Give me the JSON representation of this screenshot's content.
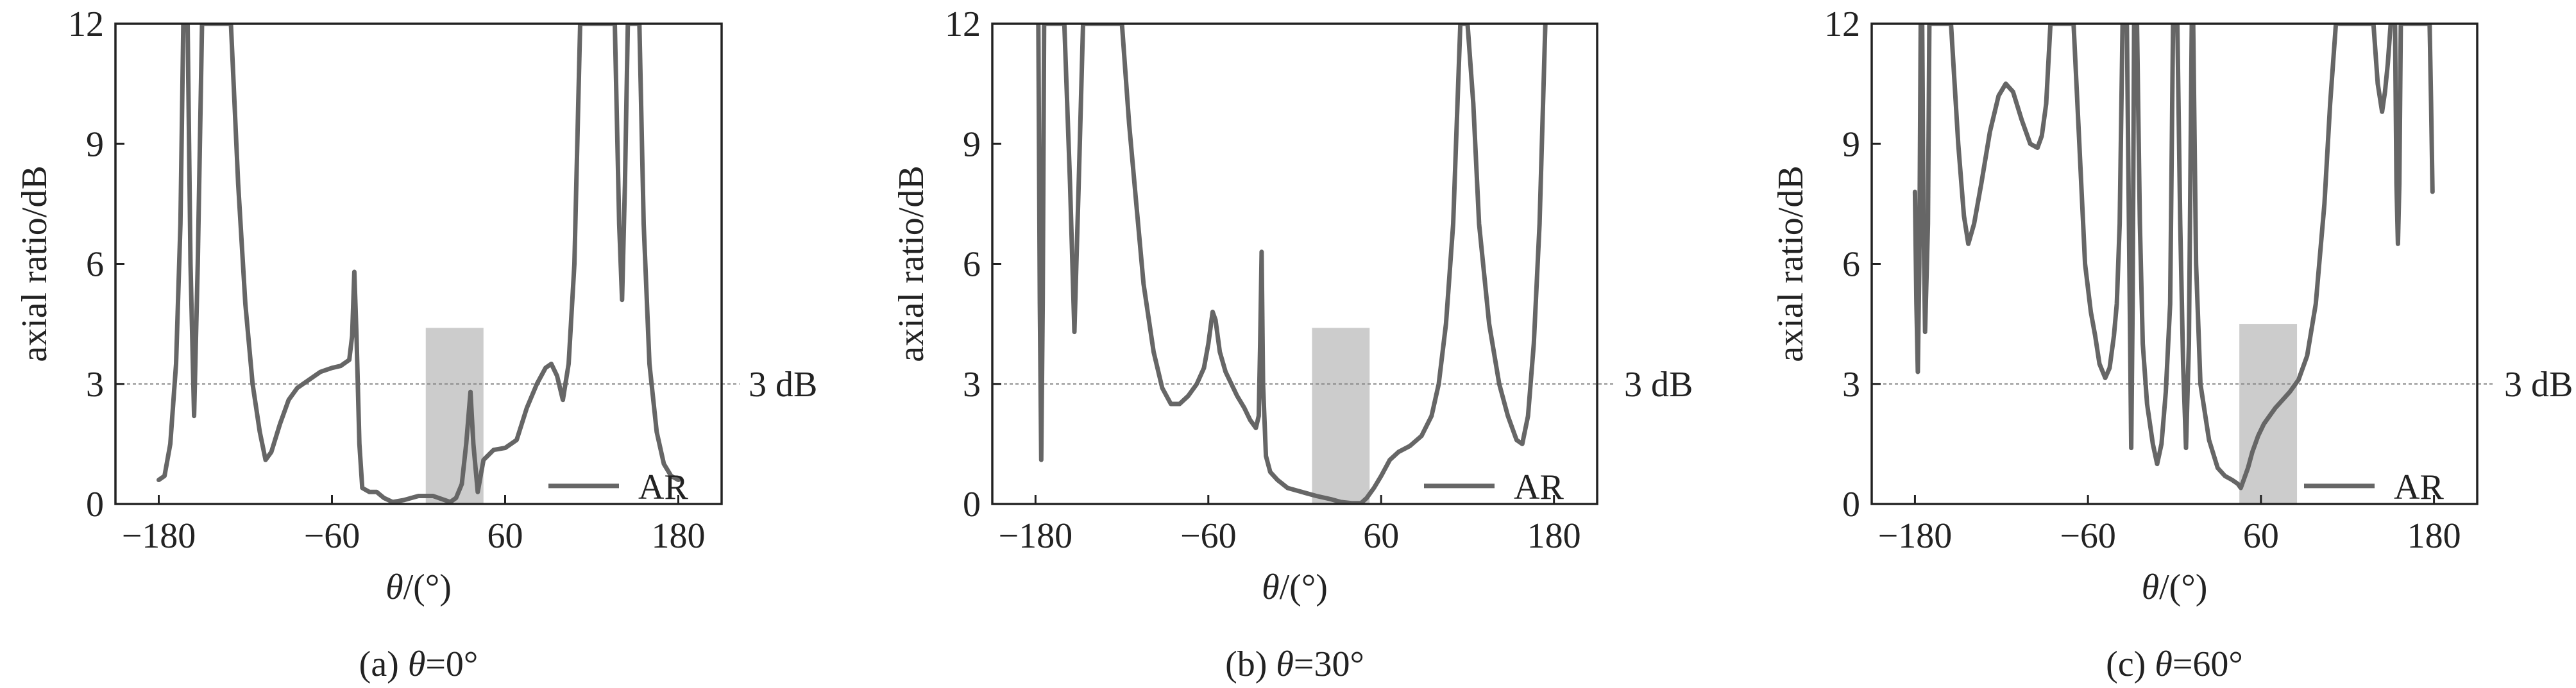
{
  "chart_data": [
    {
      "type": "line",
      "caption_prefix": "(a) ",
      "caption_var": "θ",
      "caption_value": "=0°",
      "xlabel_var": "θ",
      "xlabel_unit": "/(°)",
      "ylabel": "axial ratio/dB",
      "xlim": [
        -210,
        210
      ],
      "ylim": [
        0,
        12
      ],
      "xticks": [
        "-180",
        "-60",
        "60",
        "180"
      ],
      "yticks": [
        "0",
        "3",
        "6",
        "9",
        "12"
      ],
      "reference_line": {
        "y": 3,
        "label": "3 dB"
      },
      "highlight_band": {
        "x0": 5,
        "x1": 45,
        "y1": 4.4
      },
      "legend": {
        "label": "AR",
        "position": "bottom-right"
      },
      "series": [
        {
          "name": "AR",
          "color": "#666666",
          "points": [
            [
              -180,
              0.6
            ],
            [
              -176,
              0.7
            ],
            [
              -172,
              1.5
            ],
            [
              -168,
              3.5
            ],
            [
              -165,
              7
            ],
            [
              -163,
              12
            ],
            [
              -160,
              12
            ],
            [
              -158,
              6
            ],
            [
              -155.5,
              2.2
            ],
            [
              -153,
              6
            ],
            [
              -150,
              12
            ],
            [
              -130,
              12
            ],
            [
              -125,
              8
            ],
            [
              -120,
              5
            ],
            [
              -115,
              3
            ],
            [
              -110,
              1.8
            ],
            [
              -106,
              1.1
            ],
            [
              -102,
              1.3
            ],
            [
              -96,
              2
            ],
            [
              -90,
              2.6
            ],
            [
              -84,
              2.9
            ],
            [
              -76,
              3.1
            ],
            [
              -68,
              3.3
            ],
            [
              -60,
              3.4
            ],
            [
              -54,
              3.45
            ],
            [
              -48,
              3.6
            ],
            [
              -46,
              4.2
            ],
            [
              -44.5,
              5.8
            ],
            [
              -43,
              4.2
            ],
            [
              -41,
              1.5
            ],
            [
              -39,
              0.4
            ],
            [
              -34,
              0.3
            ],
            [
              -29,
              0.3
            ],
            [
              -24,
              0.15
            ],
            [
              -18,
              0.05
            ],
            [
              -10,
              0.1
            ],
            [
              0,
              0.2
            ],
            [
              10,
              0.2
            ],
            [
              18,
              0.1
            ],
            [
              22,
              0.05
            ],
            [
              26,
              0.15
            ],
            [
              30,
              0.5
            ],
            [
              33,
              1.5
            ],
            [
              36,
              2.8
            ],
            [
              38,
              1.5
            ],
            [
              41,
              0.3
            ],
            [
              45,
              1.1
            ],
            [
              52,
              1.35
            ],
            [
              60,
              1.4
            ],
            [
              68,
              1.6
            ],
            [
              75,
              2.4
            ],
            [
              82,
              3
            ],
            [
              88,
              3.4
            ],
            [
              92,
              3.5
            ],
            [
              96,
              3.2
            ],
            [
              100,
              2.6
            ],
            [
              104,
              3.5
            ],
            [
              108,
              6
            ],
            [
              112,
              12
            ],
            [
              117,
              12
            ],
            [
              120,
              12
            ],
            [
              130,
              12
            ],
            [
              136,
              12
            ],
            [
              139,
              7
            ],
            [
              141,
              5.1
            ],
            [
              143,
              8
            ],
            [
              145,
              12
            ],
            [
              153,
              12
            ],
            [
              156,
              7
            ],
            [
              160,
              3.5
            ],
            [
              165,
              1.8
            ],
            [
              170,
              1
            ],
            [
              175,
              0.7
            ],
            [
              180,
              0.6
            ]
          ]
        }
      ]
    },
    {
      "type": "line",
      "caption_prefix": "(b) ",
      "caption_var": "θ",
      "caption_value": "=30°",
      "xlabel_var": "θ",
      "xlabel_unit": "/(°)",
      "ylabel": "axial ratio/dB",
      "xlim": [
        -210,
        210
      ],
      "ylim": [
        0,
        12
      ],
      "xticks": [
        "-180",
        "-60",
        "60",
        "180"
      ],
      "yticks": [
        "0",
        "3",
        "6",
        "9",
        "12"
      ],
      "reference_line": {
        "y": 3,
        "label": "3 dB"
      },
      "highlight_band": {
        "x0": 12,
        "x1": 52,
        "y1": 4.4
      },
      "legend": {
        "label": "AR",
        "position": "bottom-right"
      },
      "series": [
        {
          "name": "AR",
          "color": "#666666",
          "points": [
            [
              -178,
              12
            ],
            [
              -177,
              5
            ],
            [
              -176,
              1.1
            ],
            [
              -175,
              5
            ],
            [
              -174,
              12
            ],
            [
              -160,
              12
            ],
            [
              -156,
              8
            ],
            [
              -153,
              4.3
            ],
            [
              -150,
              8
            ],
            [
              -147,
              12
            ],
            [
              -120,
              12
            ],
            [
              -115,
              9.5
            ],
            [
              -110,
              7.5
            ],
            [
              -105,
              5.5
            ],
            [
              -98,
              3.8
            ],
            [
              -92,
              2.9
            ],
            [
              -86,
              2.5
            ],
            [
              -80,
              2.5
            ],
            [
              -74,
              2.7
            ],
            [
              -68,
              3
            ],
            [
              -63,
              3.4
            ],
            [
              -60,
              4
            ],
            [
              -57,
              4.8
            ],
            [
              -55,
              4.6
            ],
            [
              -52,
              3.8
            ],
            [
              -48,
              3.3
            ],
            [
              -44,
              3
            ],
            [
              -40,
              2.7
            ],
            [
              -35,
              2.4
            ],
            [
              -31,
              2.1
            ],
            [
              -27,
              1.9
            ],
            [
              -25,
              2.2
            ],
            [
              -24,
              4
            ],
            [
              -23,
              6.3
            ],
            [
              -22,
              3
            ],
            [
              -20,
              1.2
            ],
            [
              -17,
              0.8
            ],
            [
              -12,
              0.6
            ],
            [
              -5,
              0.4
            ],
            [
              5,
              0.3
            ],
            [
              15,
              0.2
            ],
            [
              25,
              0.12
            ],
            [
              32,
              0.05
            ],
            [
              40,
              0.02
            ],
            [
              46,
              0.02
            ],
            [
              50,
              0.15
            ],
            [
              55,
              0.4
            ],
            [
              60,
              0.7
            ],
            [
              66,
              1.1
            ],
            [
              72,
              1.3
            ],
            [
              80,
              1.45
            ],
            [
              88,
              1.7
            ],
            [
              95,
              2.2
            ],
            [
              100,
              3
            ],
            [
              105,
              4.5
            ],
            [
              110,
              7
            ],
            [
              113,
              10
            ],
            [
              115,
              12
            ],
            [
              120,
              12
            ],
            [
              124,
              10
            ],
            [
              128,
              7
            ],
            [
              135,
              4.5
            ],
            [
              142,
              3
            ],
            [
              148,
              2.2
            ],
            [
              154,
              1.6
            ],
            [
              158,
              1.5
            ],
            [
              162,
              2.2
            ],
            [
              166,
              4
            ],
            [
              170,
              7
            ],
            [
              174,
              12
            ]
          ]
        }
      ]
    },
    {
      "type": "line",
      "caption_prefix": "(c) ",
      "caption_var": "θ",
      "caption_value": "=60°",
      "xlabel_var": "θ",
      "xlabel_unit": "/(°)",
      "ylabel": "axial ratio/dB",
      "xlim": [
        -210,
        210
      ],
      "ylim": [
        0,
        12
      ],
      "xticks": [
        "-180",
        "-60",
        "60",
        "180"
      ],
      "yticks": [
        "0",
        "3",
        "6",
        "9",
        "12"
      ],
      "reference_line": {
        "y": 3,
        "label": "3 dB"
      },
      "highlight_band": {
        "x0": 45,
        "x1": 85,
        "y1": 4.5
      },
      "legend": {
        "label": "AR",
        "position": "bottom-right"
      },
      "series": [
        {
          "name": "AR",
          "color": "#666666",
          "points": [
            [
              -180,
              7.8
            ],
            [
              -179,
              5
            ],
            [
              -178,
              3.3
            ],
            [
              -177,
              6
            ],
            [
              -176,
              12
            ],
            [
              -175,
              12
            ],
            [
              -174,
              7
            ],
            [
              -173,
              4.3
            ],
            [
              -171,
              7
            ],
            [
              -170,
              12
            ],
            [
              -168,
              12
            ],
            [
              -155,
              12
            ],
            [
              -150,
              9
            ],
            [
              -146,
              7.2
            ],
            [
              -143,
              6.5
            ],
            [
              -139,
              7
            ],
            [
              -134,
              8
            ],
            [
              -128,
              9.3
            ],
            [
              -122,
              10.2
            ],
            [
              -117,
              10.5
            ],
            [
              -112,
              10.3
            ],
            [
              -106,
              9.6
            ],
            [
              -100,
              9
            ],
            [
              -95,
              8.9
            ],
            [
              -92,
              9.2
            ],
            [
              -89,
              10
            ],
            [
              -86,
              12
            ],
            [
              -70,
              12
            ],
            [
              -66,
              9
            ],
            [
              -62,
              6
            ],
            [
              -58,
              4.8
            ],
            [
              -55,
              4.2
            ],
            [
              -52,
              3.5
            ],
            [
              -48,
              3.15
            ],
            [
              -45,
              3.4
            ],
            [
              -42,
              4.2
            ],
            [
              -40,
              5
            ],
            [
              -38,
              7
            ],
            [
              -36,
              12
            ],
            [
              -33,
              12
            ],
            [
              -31,
              5
            ],
            [
              -30,
              1.4
            ],
            [
              -29,
              5
            ],
            [
              -28,
              12
            ],
            [
              -26,
              12
            ],
            [
              -24,
              7
            ],
            [
              -22,
              4
            ],
            [
              -19,
              2.5
            ],
            [
              -15,
              1.5
            ],
            [
              -12,
              1
            ],
            [
              -9,
              1.5
            ],
            [
              -6,
              2.8
            ],
            [
              -3,
              5
            ],
            [
              -1,
              12
            ],
            [
              2,
              12
            ],
            [
              4,
              7
            ],
            [
              6,
              3.5
            ],
            [
              8,
              1.4
            ],
            [
              10,
              4
            ],
            [
              12,
              12
            ],
            [
              13,
              12
            ],
            [
              15,
              6
            ],
            [
              18,
              3
            ],
            [
              24,
              1.6
            ],
            [
              30,
              0.9
            ],
            [
              35,
              0.7
            ],
            [
              40,
              0.6
            ],
            [
              44,
              0.5
            ],
            [
              46,
              0.4
            ],
            [
              48,
              0.6
            ],
            [
              51,
              0.9
            ],
            [
              54,
              1.3
            ],
            [
              58,
              1.7
            ],
            [
              62,
              2
            ],
            [
              66,
              2.2
            ],
            [
              70,
              2.4
            ],
            [
              75,
              2.6
            ],
            [
              80,
              2.8
            ],
            [
              86,
              3.1
            ],
            [
              92,
              3.7
            ],
            [
              98,
              5
            ],
            [
              104,
              7.5
            ],
            [
              108,
              10
            ],
            [
              112,
              12
            ],
            [
              138,
              12
            ],
            [
              141,
              10.5
            ],
            [
              144,
              9.8
            ],
            [
              146,
              10.3
            ],
            [
              148,
              11
            ],
            [
              150,
              12
            ],
            [
              153,
              12
            ],
            [
              154,
              8
            ],
            [
              155,
              6.5
            ],
            [
              156,
              8
            ],
            [
              157,
              12
            ],
            [
              177,
              12
            ],
            [
              178,
              10
            ],
            [
              179,
              7.8
            ]
          ]
        }
      ]
    }
  ]
}
